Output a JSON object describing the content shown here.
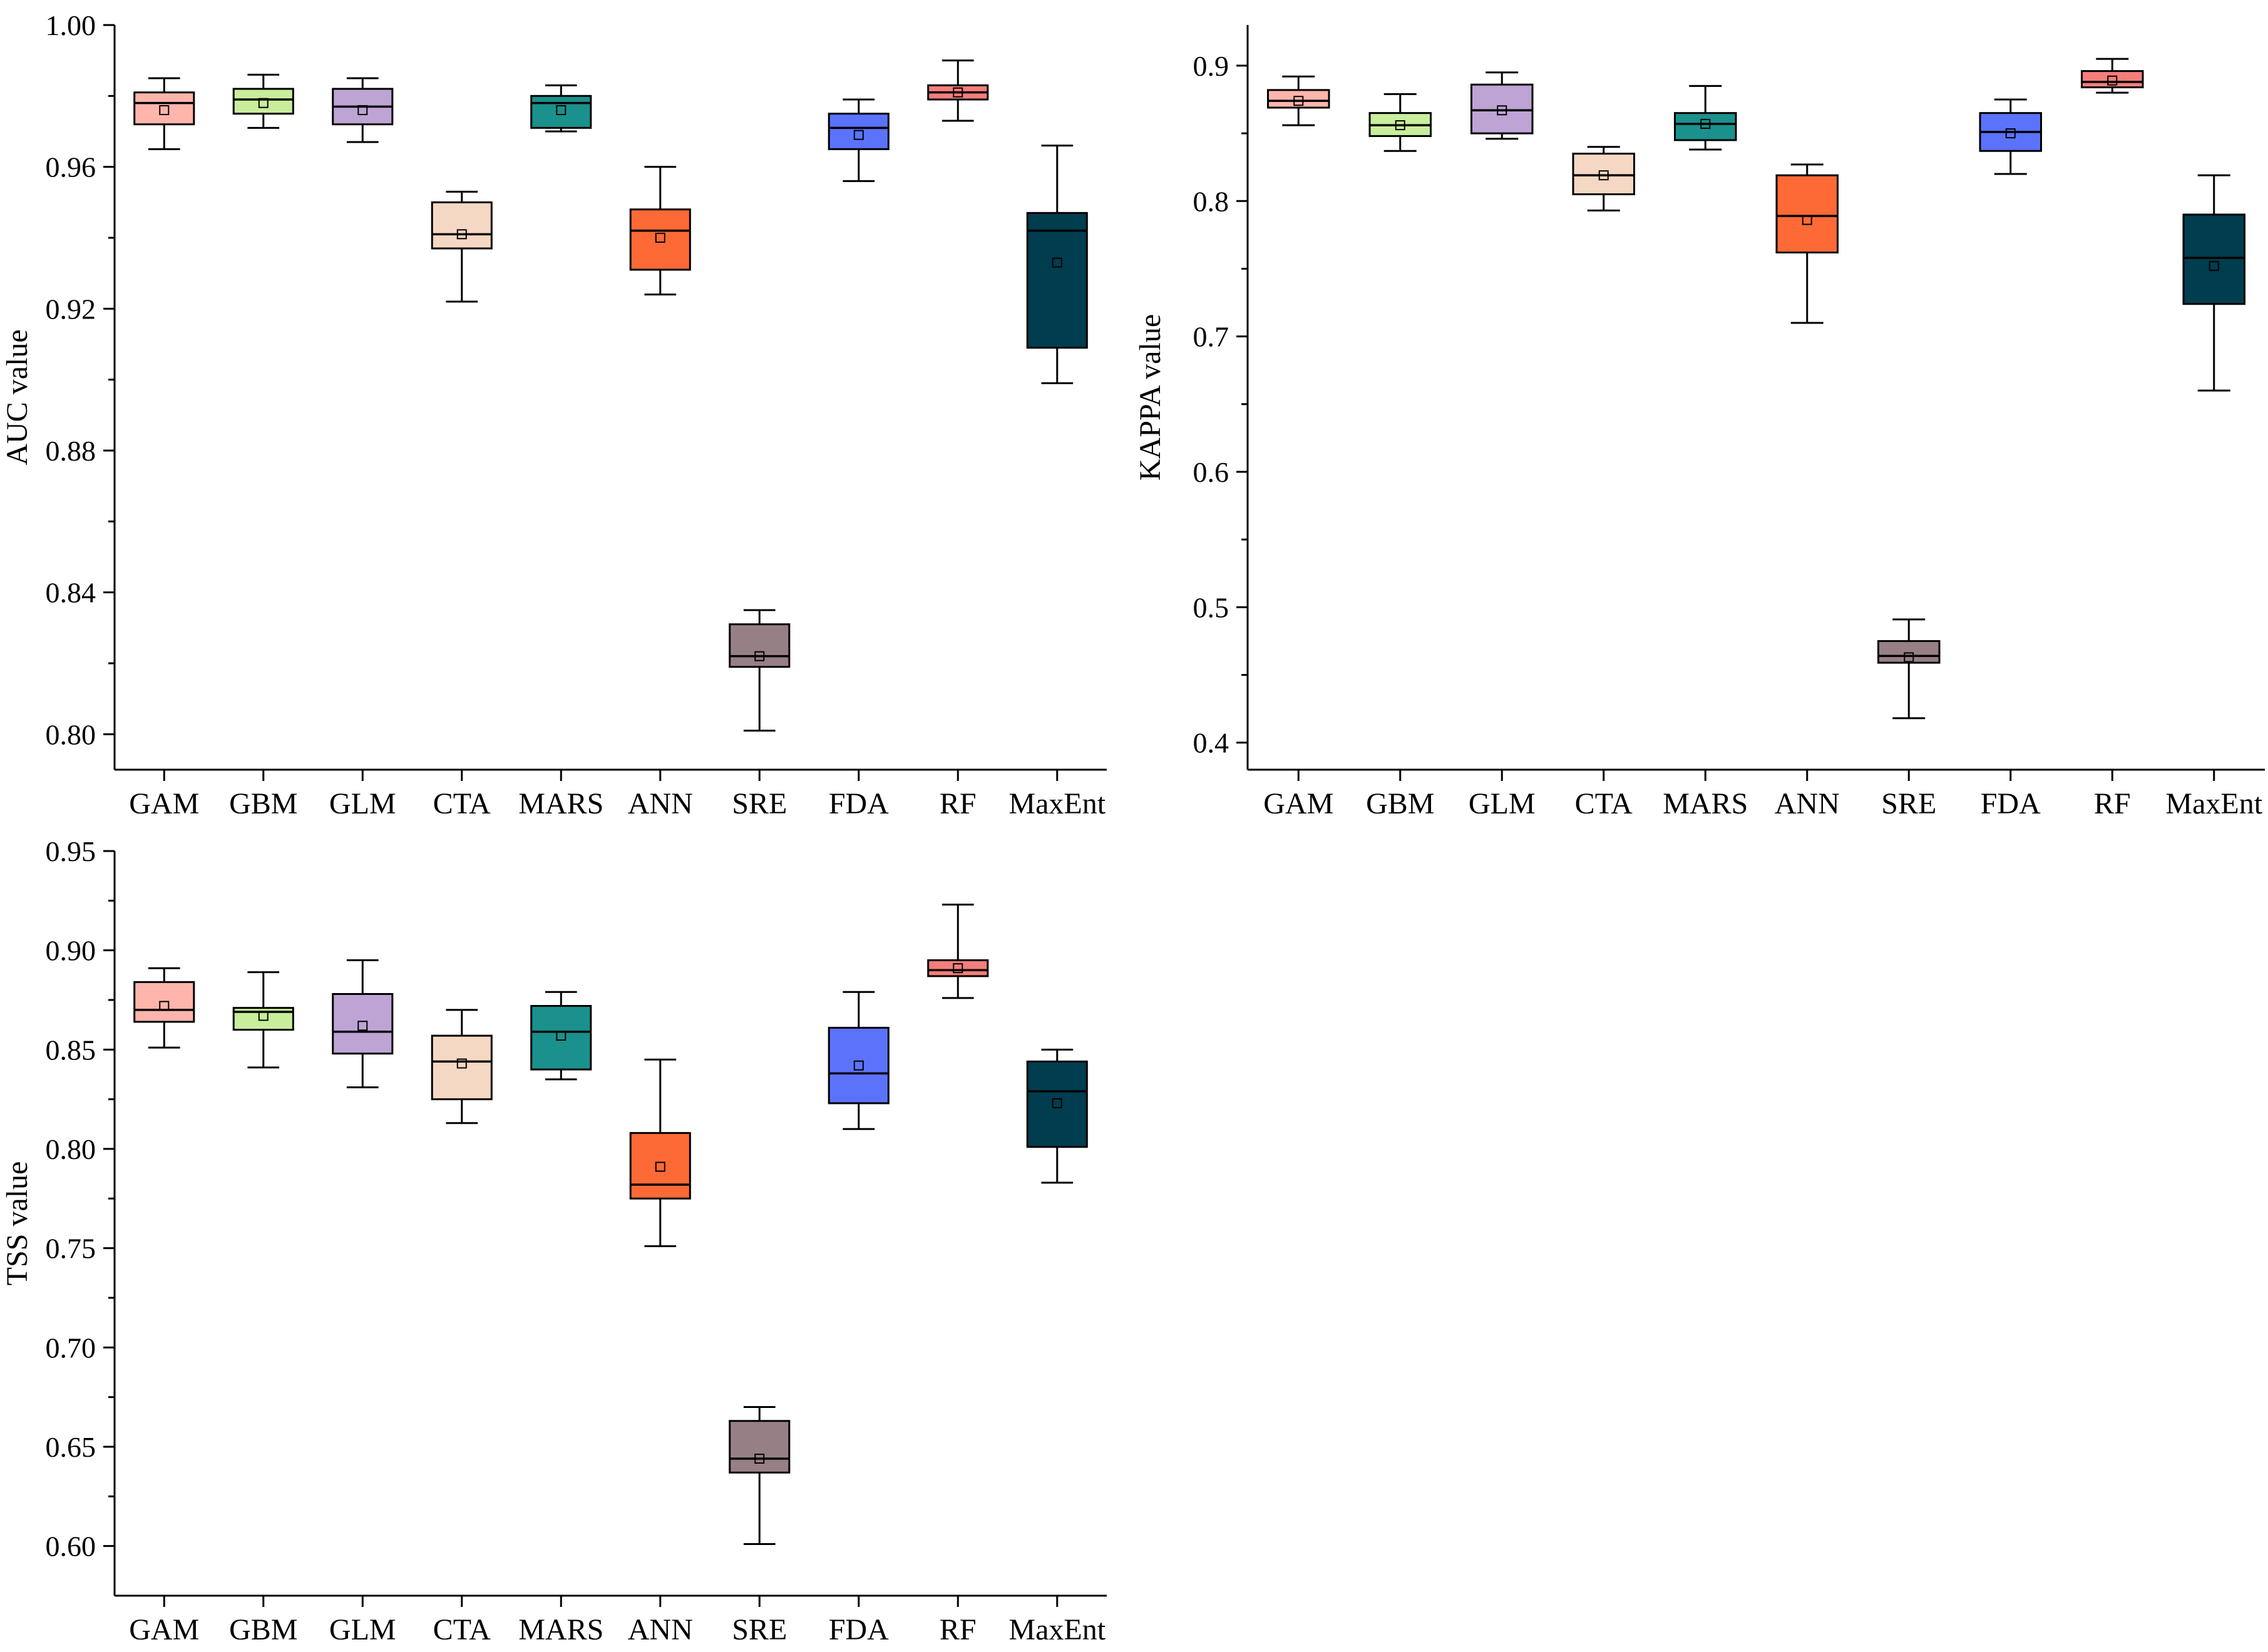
{
  "chart_data": [
    {
      "type": "box",
      "title": "",
      "xlabel": "",
      "ylabel": "AUC value",
      "categories": [
        "GAM",
        "GBM",
        "GLM",
        "CTA",
        "MARS",
        "ANN",
        "SRE",
        "FDA",
        "RF",
        "MaxEnt"
      ],
      "ylim": [
        0.79,
        1.0
      ],
      "yticks": [
        "0.80",
        "0.84",
        "0.88",
        "0.92",
        "0.96",
        "1.00"
      ],
      "boxes": [
        {
          "min": 0.965,
          "q1": 0.972,
          "median": 0.978,
          "q3": 0.981,
          "max": 0.985,
          "mean": 0.976
        },
        {
          "min": 0.971,
          "q1": 0.975,
          "median": 0.979,
          "q3": 0.982,
          "max": 0.986,
          "mean": 0.978
        },
        {
          "min": 0.967,
          "q1": 0.972,
          "median": 0.977,
          "q3": 0.982,
          "max": 0.985,
          "mean": 0.976
        },
        {
          "min": 0.922,
          "q1": 0.937,
          "median": 0.941,
          "q3": 0.95,
          "max": 0.953,
          "mean": 0.941
        },
        {
          "min": 0.97,
          "q1": 0.971,
          "median": 0.978,
          "q3": 0.98,
          "max": 0.983,
          "mean": 0.976
        },
        {
          "min": 0.924,
          "q1": 0.931,
          "median": 0.942,
          "q3": 0.948,
          "max": 0.96,
          "mean": 0.94
        },
        {
          "min": 0.801,
          "q1": 0.819,
          "median": 0.822,
          "q3": 0.831,
          "max": 0.835,
          "mean": 0.822
        },
        {
          "min": 0.956,
          "q1": 0.965,
          "median": 0.971,
          "q3": 0.975,
          "max": 0.979,
          "mean": 0.969
        },
        {
          "min": 0.973,
          "q1": 0.979,
          "median": 0.981,
          "q3": 0.983,
          "max": 0.99,
          "mean": 0.981
        },
        {
          "min": 0.899,
          "q1": 0.909,
          "median": 0.942,
          "q3": 0.947,
          "max": 0.966,
          "mean": 0.933
        }
      ]
    },
    {
      "type": "box",
      "title": "",
      "xlabel": "",
      "ylabel": "KAPPA value",
      "categories": [
        "GAM",
        "GBM",
        "GLM",
        "CTA",
        "MARS",
        "ANN",
        "SRE",
        "FDA",
        "RF",
        "MaxEnt"
      ],
      "ylim": [
        0.38,
        0.93
      ],
      "yticks": [
        "0.4",
        "0.5",
        "0.6",
        "0.7",
        "0.8",
        "0.9"
      ],
      "boxes": [
        {
          "min": 0.856,
          "q1": 0.869,
          "median": 0.874,
          "q3": 0.882,
          "max": 0.892,
          "mean": 0.874
        },
        {
          "min": 0.837,
          "q1": 0.848,
          "median": 0.856,
          "q3": 0.865,
          "max": 0.879,
          "mean": 0.856
        },
        {
          "min": 0.846,
          "q1": 0.85,
          "median": 0.867,
          "q3": 0.886,
          "max": 0.895,
          "mean": 0.867
        },
        {
          "min": 0.793,
          "q1": 0.805,
          "median": 0.819,
          "q3": 0.835,
          "max": 0.84,
          "mean": 0.819
        },
        {
          "min": 0.838,
          "q1": 0.845,
          "median": 0.857,
          "q3": 0.865,
          "max": 0.885,
          "mean": 0.857
        },
        {
          "min": 0.71,
          "q1": 0.762,
          "median": 0.789,
          "q3": 0.819,
          "max": 0.827,
          "mean": 0.786
        },
        {
          "min": 0.418,
          "q1": 0.459,
          "median": 0.464,
          "q3": 0.475,
          "max": 0.491,
          "mean": 0.463
        },
        {
          "min": 0.82,
          "q1": 0.837,
          "median": 0.851,
          "q3": 0.865,
          "max": 0.875,
          "mean": 0.85
        },
        {
          "min": 0.88,
          "q1": 0.884,
          "median": 0.888,
          "q3": 0.896,
          "max": 0.905,
          "mean": 0.889
        },
        {
          "min": 0.66,
          "q1": 0.724,
          "median": 0.758,
          "q3": 0.79,
          "max": 0.819,
          "mean": 0.752
        }
      ]
    },
    {
      "type": "box",
      "title": "",
      "xlabel": "",
      "ylabel": "TSS value",
      "categories": [
        "GAM",
        "GBM",
        "GLM",
        "CTA",
        "MARS",
        "ANN",
        "SRE",
        "FDA",
        "RF",
        "MaxEnt"
      ],
      "ylim": [
        0.575,
        0.95
      ],
      "yticks": [
        "0.60",
        "0.65",
        "0.70",
        "0.75",
        "0.80",
        "0.85",
        "0.90",
        "0.95"
      ],
      "boxes": [
        {
          "min": 0.851,
          "q1": 0.864,
          "median": 0.87,
          "q3": 0.884,
          "max": 0.891,
          "mean": 0.872
        },
        {
          "min": 0.841,
          "q1": 0.86,
          "median": 0.869,
          "q3": 0.871,
          "max": 0.889,
          "mean": 0.867
        },
        {
          "min": 0.831,
          "q1": 0.848,
          "median": 0.859,
          "q3": 0.878,
          "max": 0.895,
          "mean": 0.862
        },
        {
          "min": 0.813,
          "q1": 0.825,
          "median": 0.844,
          "q3": 0.857,
          "max": 0.87,
          "mean": 0.843
        },
        {
          "min": 0.835,
          "q1": 0.84,
          "median": 0.859,
          "q3": 0.872,
          "max": 0.879,
          "mean": 0.857
        },
        {
          "min": 0.751,
          "q1": 0.775,
          "median": 0.782,
          "q3": 0.808,
          "max": 0.845,
          "mean": 0.791
        },
        {
          "min": 0.601,
          "q1": 0.637,
          "median": 0.644,
          "q3": 0.663,
          "max": 0.67,
          "mean": 0.644
        },
        {
          "min": 0.81,
          "q1": 0.823,
          "median": 0.838,
          "q3": 0.861,
          "max": 0.879,
          "mean": 0.842
        },
        {
          "min": 0.876,
          "q1": 0.887,
          "median": 0.89,
          "q3": 0.895,
          "max": 0.923,
          "mean": 0.891
        },
        {
          "min": 0.783,
          "q1": 0.801,
          "median": 0.829,
          "q3": 0.844,
          "max": 0.85,
          "mean": 0.823
        }
      ]
    }
  ],
  "colors": {
    "GAM": "#ffb5ab",
    "GBM": "#c9ee9b",
    "GLM": "#bda4d4",
    "CTA": "#f5d8c3",
    "MARS": "#1a918c",
    "ANN": "#fd6a35",
    "SRE": "#978085",
    "FDA": "#5b73fb",
    "RF": "#f57e7b",
    "MaxEnt": "#003d4f"
  }
}
